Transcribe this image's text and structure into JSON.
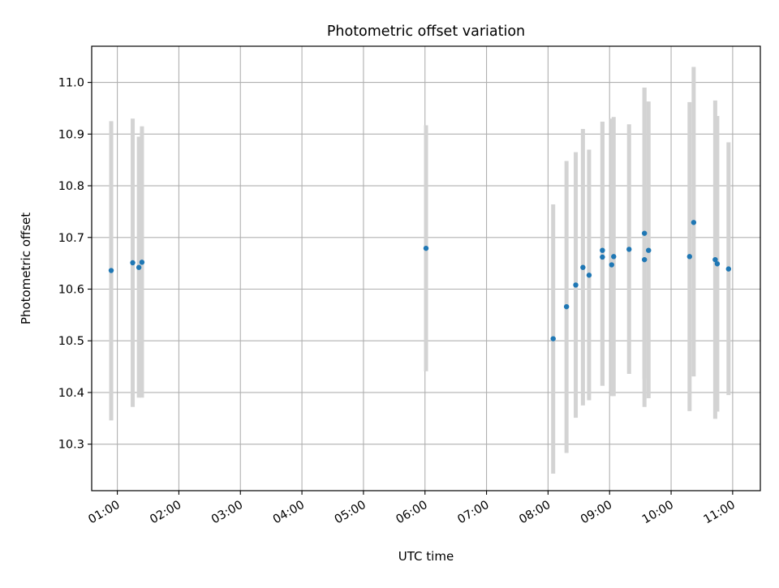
{
  "chart_data": {
    "type": "scatter",
    "title": "Photometric offset variation",
    "xlabel": "UTC time",
    "ylabel": "Photometric offset",
    "x_ticks": [
      "01:00",
      "02:00",
      "03:00",
      "04:00",
      "05:00",
      "06:00",
      "07:00",
      "08:00",
      "09:00",
      "10:00",
      "11:00"
    ],
    "y_ticks": [
      "10.3",
      "10.4",
      "10.5",
      "10.6",
      "10.7",
      "10.8",
      "10.9",
      "11.0"
    ],
    "xlim": [
      "00:35",
      "11:27"
    ],
    "ylim": [
      10.21,
      11.07
    ],
    "grid": true,
    "points": [
      {
        "x": "00:54",
        "y": 10.636,
        "lo": 10.346,
        "hi": 10.925
      },
      {
        "x": "01:15",
        "y": 10.651,
        "lo": 10.372,
        "hi": 10.93
      },
      {
        "x": "01:21",
        "y": 10.642,
        "lo": 10.39,
        "hi": 10.895
      },
      {
        "x": "01:24",
        "y": 10.652,
        "lo": 10.39,
        "hi": 10.915
      },
      {
        "x": "06:01",
        "y": 10.679,
        "lo": 10.441,
        "hi": 10.917
      },
      {
        "x": "08:05",
        "y": 10.504,
        "lo": 10.243,
        "hi": 10.764
      },
      {
        "x": "08:18",
        "y": 10.566,
        "lo": 10.283,
        "hi": 10.848
      },
      {
        "x": "08:27",
        "y": 10.608,
        "lo": 10.351,
        "hi": 10.865
      },
      {
        "x": "08:34",
        "y": 10.642,
        "lo": 10.375,
        "hi": 10.91
      },
      {
        "x": "08:40",
        "y": 10.627,
        "lo": 10.385,
        "hi": 10.87
      },
      {
        "x": "08:53",
        "y": 10.662,
        "lo": 10.413,
        "hi": 10.924
      },
      {
        "x": "08:53",
        "y": 10.675,
        "lo": 10.413,
        "hi": 10.924
      },
      {
        "x": "09:02",
        "y": 10.647,
        "lo": 10.393,
        "hi": 10.93
      },
      {
        "x": "09:04",
        "y": 10.663,
        "lo": 10.393,
        "hi": 10.933
      },
      {
        "x": "09:19",
        "y": 10.677,
        "lo": 10.436,
        "hi": 10.919
      },
      {
        "x": "09:34",
        "y": 10.708,
        "lo": 10.426,
        "hi": 10.99
      },
      {
        "x": "09:34",
        "y": 10.657,
        "lo": 10.372,
        "hi": 10.99
      },
      {
        "x": "09:38",
        "y": 10.675,
        "lo": 10.389,
        "hi": 10.963
      },
      {
        "x": "10:18",
        "y": 10.663,
        "lo": 10.364,
        "hi": 10.962
      },
      {
        "x": "10:22",
        "y": 10.729,
        "lo": 10.431,
        "hi": 11.03
      },
      {
        "x": "10:43",
        "y": 10.657,
        "lo": 10.349,
        "hi": 10.965
      },
      {
        "x": "10:45",
        "y": 10.649,
        "lo": 10.363,
        "hi": 10.935
      },
      {
        "x": "10:56",
        "y": 10.639,
        "lo": 10.395,
        "hi": 10.884
      }
    ],
    "colors": {
      "point": "#1f77b4",
      "errorbar": "#d3d3d3",
      "grid": "#b0b0b0",
      "axes": "#000000"
    }
  }
}
